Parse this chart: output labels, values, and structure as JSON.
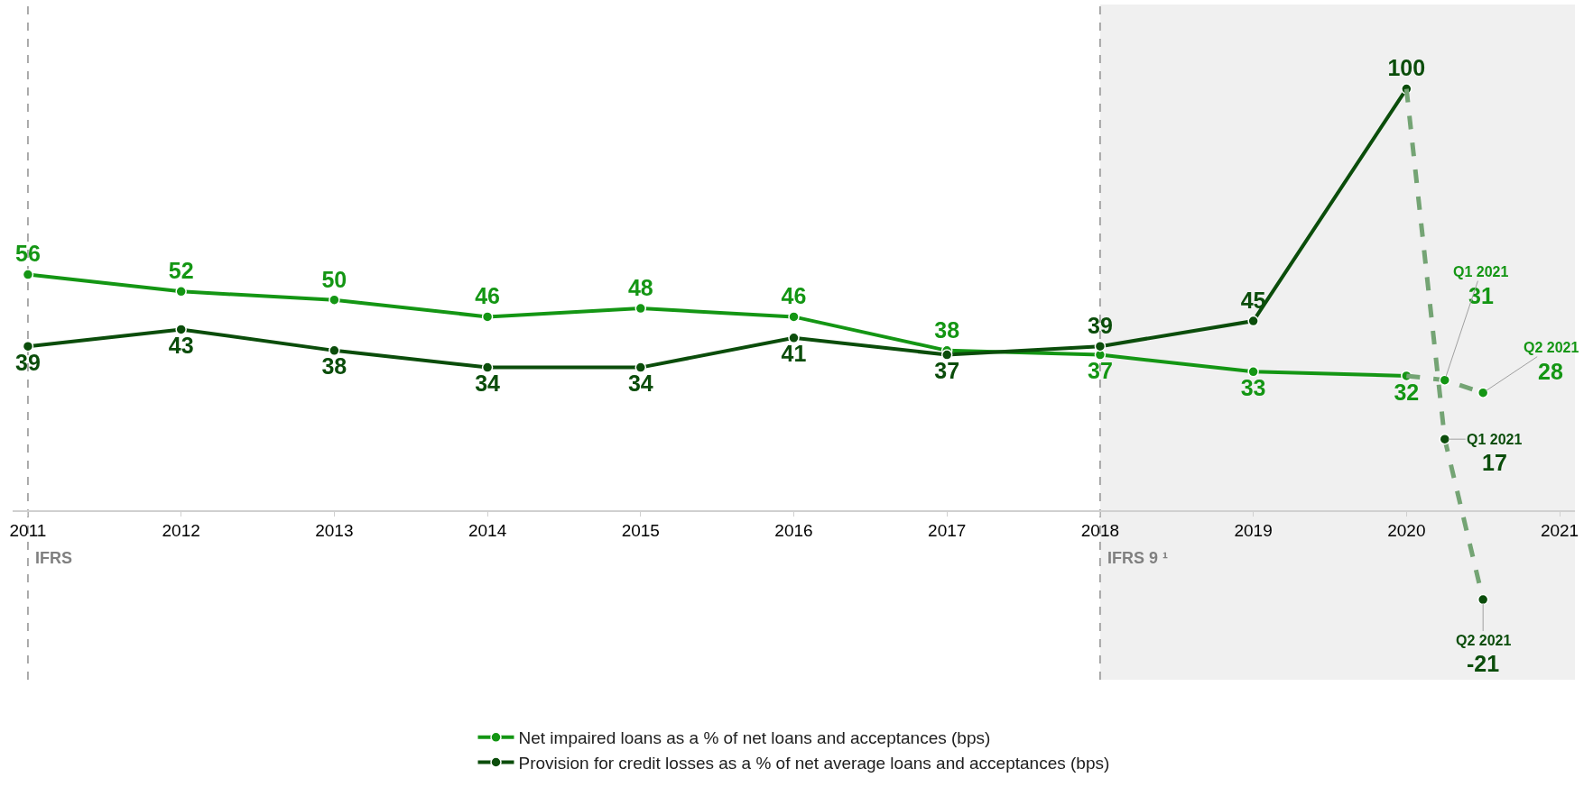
{
  "chart_data": {
    "type": "line",
    "xlim": [
      2010.9,
      2021.1
    ],
    "xticks": [
      2011,
      2012,
      2013,
      2014,
      2015,
      2016,
      2017,
      2018,
      2019,
      2020,
      2021
    ],
    "ylim": [
      -40,
      120
    ],
    "tick_labels": "x",
    "grid": false,
    "legend": "bottom",
    "marker": "circle",
    "line_style": "solid",
    "series": [
      {
        "name": "Net impaired loans as a % of net loans and acceptances (bps)",
        "color": "#149614",
        "x": [
          2011,
          2012,
          2013,
          2014,
          2015,
          2016,
          2017,
          2018,
          2019,
          2020
        ],
        "values": [
          56,
          52,
          50,
          46,
          48,
          46,
          38,
          37,
          33,
          32
        ],
        "value_labels": [
          "56",
          "52",
          "50",
          "46",
          "48",
          "46",
          "38",
          "37",
          "33",
          "32"
        ]
      },
      {
        "name": "Provision for credit losses as a % of net average loans and acceptances (bps)",
        "color": "#0b4d0b",
        "x": [
          2011,
          2012,
          2013,
          2014,
          2015,
          2016,
          2017,
          2018,
          2019,
          2020
        ],
        "values": [
          39,
          43,
          38,
          34,
          34,
          41,
          37,
          39,
          45,
          100
        ],
        "value_labels": [
          "39",
          "43",
          "38",
          "34",
          "34",
          "41",
          "37",
          "39",
          "45",
          "100"
        ]
      },
      {
        "type": "line",
        "color": "#74a474",
        "x": [
          2020,
          2020.25,
          2020.5
        ],
        "values": [
          32,
          31,
          28
        ],
        "line_style": "dashed",
        "marker": "none"
      },
      {
        "type": "line",
        "color": "#74a474",
        "x": [
          2020,
          2020.25,
          2020.5
        ],
        "values": [
          100,
          17,
          -21
        ],
        "line_style": "dashed",
        "marker": "none"
      },
      {
        "type": "scatter",
        "color": "#149614",
        "x": [
          2020.25,
          2020.5
        ],
        "values": [
          31,
          28
        ],
        "value_labels": [
          "31",
          "28"
        ]
      },
      {
        "type": "scatter",
        "color": "#0b4d0b",
        "x": [
          2020.25,
          2020.5
        ],
        "values": [
          17,
          -21
        ],
        "value_labels": [
          "17",
          "-21"
        ]
      }
    ],
    "ref_lines": [
      {
        "axis": "x",
        "value": 2011,
        "label": "IFRS",
        "color": "#808080",
        "line_style": "dashed"
      },
      {
        "axis": "x",
        "value": 2018,
        "label": "IFRS 9 ¹",
        "color": "#808080",
        "line_style": "dashed"
      }
    ],
    "bands": [
      {
        "axis": "x",
        "from": 2018,
        "to": 2021.1,
        "color": "#f0f0f0"
      }
    ],
    "annotations": [
      "Q1 2021",
      "Q2 2021",
      "Q1 2021",
      "Q2 2021"
    ]
  }
}
